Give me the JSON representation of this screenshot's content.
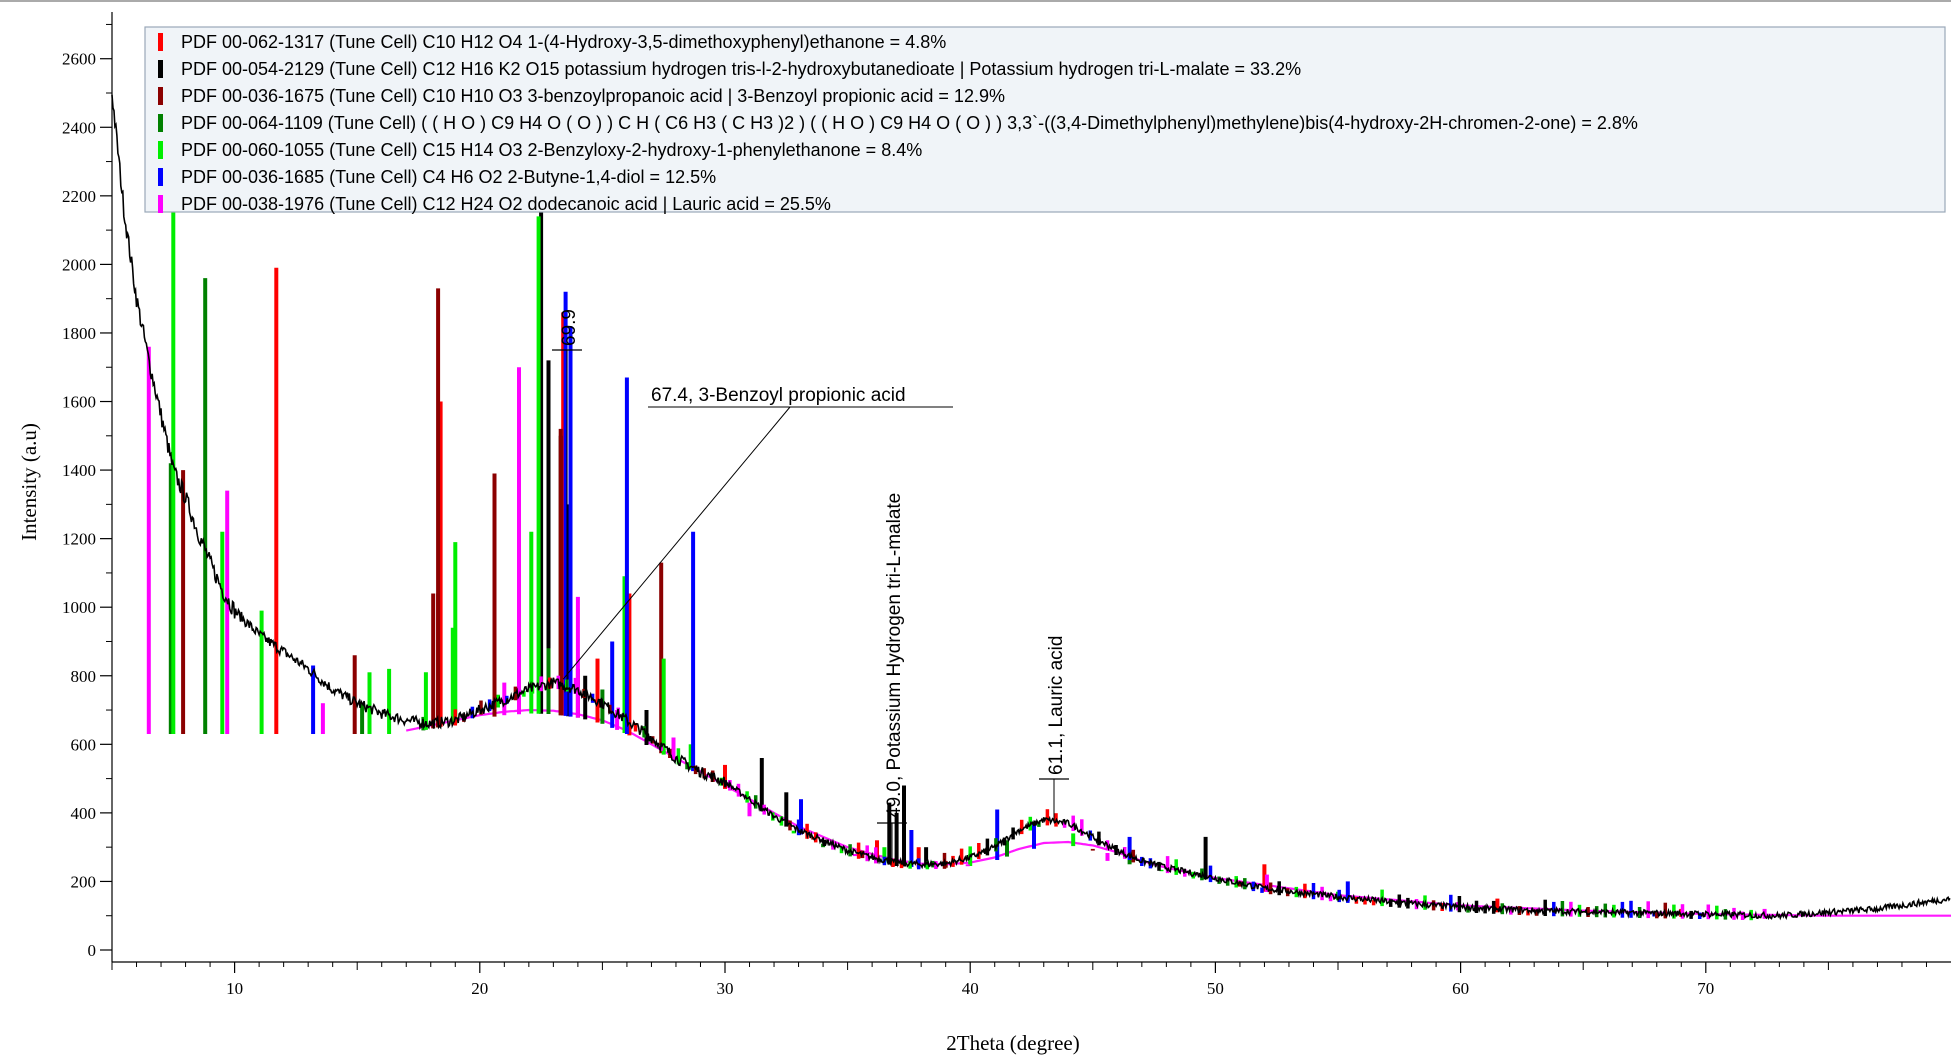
{
  "chart_data": {
    "type": "line",
    "xlabel": "2Theta (degree)",
    "ylabel": "Intensity (a.u)",
    "xlim": [
      5,
      80
    ],
    "ylim": [
      -40,
      2700
    ],
    "xticks": [
      10,
      20,
      30,
      40,
      50,
      60,
      70
    ],
    "yticks": [
      0,
      200,
      400,
      600,
      800,
      1000,
      1200,
      1400,
      1600,
      1800,
      2000,
      2200,
      2400,
      2600
    ],
    "grid": false,
    "legend_placement": "top",
    "legend": [
      {
        "color": "#ff0000",
        "text": "PDF 00-062-1317 (Tune Cell) C10 H12 O4 1-(4-Hydroxy-3,5-dimethoxyphenyl)ethanone = 4.8%"
      },
      {
        "color": "#000000",
        "text": "PDF 00-054-2129 (Tune Cell) C12 H16 K2 O15 potassium hydrogen tris-l-2-hydroxybutanedioate | Potassium hydrogen tri-L-malate = 33.2%"
      },
      {
        "color": "#8b0000",
        "text": "PDF 00-036-1675 (Tune Cell) C10 H10 O3 3-benzoylpropanoic acid | 3-Benzoyl propionic acid = 12.9%"
      },
      {
        "color": "#008000",
        "text": "PDF 00-064-1109 (Tune Cell) ( ( H O ) C9 H4 O ( O ) ) C H ( C6 H3 ( C H3 )2 ) ( ( H O ) C9 H4 O ( O ) ) 3,3`-((3,4-Dimethylphenyl)methylene)bis(4-hydroxy-2H-chromen-2-one) = 2.8%"
      },
      {
        "color": "#00ee00",
        "text": "PDF 00-060-1055 (Tune Cell) C15 H14 O3 2-Benzyloxy-2-hydroxy-1-phenylethanone = 8.4%"
      },
      {
        "color": "#0000ff",
        "text": "PDF 00-036-1685 (Tune Cell) C4 H6 O2 2-Butyne-1,4-diol = 12.5%"
      },
      {
        "color": "#ff00ff",
        "text": "PDF 00-038-1976 (Tune Cell) C12 H24 O2 dodecanoic acid | Lauric acid = 25.5%"
      }
    ],
    "annotations": [
      {
        "text": "67.4, 3-Benzoyl propionic acid",
        "x": 23.4,
        "y": 790,
        "orientation": "horizontal"
      },
      {
        "text": "69.9",
        "x": 23.5,
        "y": 1780,
        "orientation": "vertical"
      },
      {
        "text": "49.0, Potassium Hydrogen tri-L-malate",
        "x": 36.9,
        "y": 400,
        "orientation": "vertical"
      },
      {
        "text": "61.1, Lauric acid",
        "x": 43.3,
        "y": 530,
        "orientation": "vertical"
      }
    ],
    "observed_profile": {
      "name": "observed",
      "color": "#000000",
      "x": [
        5,
        5.5,
        6,
        6.5,
        7,
        7.5,
        8,
        8.5,
        9,
        9.5,
        10,
        11,
        12,
        13,
        14,
        15,
        16,
        17,
        18,
        19,
        20,
        21,
        22,
        23,
        24,
        25,
        26,
        27,
        28,
        29,
        30,
        31,
        32,
        33,
        34,
        35,
        36,
        37,
        38,
        39,
        40,
        41,
        42,
        43,
        44,
        45,
        46,
        47,
        48,
        50,
        52,
        55,
        58,
        60,
        63,
        66,
        70,
        73,
        75,
        77,
        80
      ],
      "y": [
        2500,
        2150,
        1900,
        1720,
        1560,
        1400,
        1320,
        1220,
        1130,
        1050,
        990,
        920,
        870,
        820,
        760,
        720,
        690,
        670,
        660,
        670,
        700,
        730,
        760,
        780,
        760,
        720,
        670,
        620,
        560,
        520,
        490,
        440,
        390,
        350,
        320,
        290,
        270,
        255,
        250,
        252,
        270,
        300,
        350,
        380,
        370,
        330,
        290,
        260,
        240,
        210,
        180,
        155,
        135,
        125,
        115,
        110,
        105,
        100,
        110,
        120,
        150
      ]
    },
    "fitted_background": {
      "name": "background",
      "x": [
        17,
        18,
        19,
        20,
        21,
        22,
        23,
        24,
        25,
        26,
        27,
        28,
        29,
        30,
        31,
        32,
        33,
        34,
        35,
        36,
        37,
        38,
        39,
        40,
        41,
        42,
        43,
        44,
        45,
        46,
        47,
        48,
        50,
        55,
        60,
        65,
        70,
        75,
        80
      ],
      "y": [
        640,
        655,
        670,
        685,
        695,
        700,
        698,
        688,
        670,
        640,
        600,
        560,
        520,
        480,
        440,
        400,
        360,
        330,
        300,
        280,
        262,
        252,
        250,
        255,
        270,
        295,
        312,
        315,
        305,
        285,
        260,
        240,
        210,
        160,
        130,
        115,
        105,
        100,
        100
      ]
    },
    "reference_lines": [
      {
        "phase": "PDF 00-062-1317",
        "color": "#ff0000",
        "positions": [
          11.7,
          18.3,
          18.4,
          23.4,
          24.8,
          26.1,
          30.0,
          36.2,
          37.9,
          52.0,
          61.5,
          69.0
        ],
        "intensities": [
          1990,
          1040,
          1600,
          1860,
          850,
          1040,
          540,
          320,
          300,
          250,
          150,
          120
        ]
      },
      {
        "phase": "PDF 00-054-2129",
        "color": "#000000",
        "positions": [
          22.5,
          22.8,
          23.3,
          23.6,
          24.3,
          26.8,
          31.5,
          32.5,
          36.7,
          37.0,
          37.3,
          38.2,
          49.6
        ],
        "intensities": [
          2200,
          1720,
          1500,
          1300,
          800,
          700,
          560,
          460,
          430,
          400,
          480,
          300,
          330
        ]
      },
      {
        "phase": "PDF 00-036-1675",
        "color": "#8b0000",
        "positions": [
          7.9,
          14.9,
          18.1,
          18.3,
          20.6,
          23.3,
          24.0,
          27.4,
          29.5,
          33.6,
          35.6,
          39.0,
          45.0,
          51.0
        ],
        "intensities": [
          1400,
          860,
          1040,
          1930,
          1390,
          1520,
          820,
          1130,
          510,
          330,
          290,
          260,
          290,
          200
        ]
      },
      {
        "phase": "PDF 00-064-1109",
        "color": "#008000",
        "positions": [
          7.4,
          8.8,
          15.2,
          17.7,
          22.8,
          25.0,
          34.0,
          38.5,
          41.5,
          46.5
        ],
        "intensities": [
          1420,
          1960,
          720,
          680,
          880,
          760,
          300,
          260,
          320,
          250
        ]
      },
      {
        "phase": "PDF 00-060-1055",
        "color": "#00ee00",
        "positions": [
          7.5,
          9.5,
          11.1,
          15.5,
          16.3,
          17.8,
          18.9,
          19.0,
          22.1,
          22.4,
          25.9,
          27.5,
          28.6,
          32.8,
          36.5,
          40.0,
          44.2,
          47.8,
          55.0
        ],
        "intensities": [
          2190,
          1220,
          990,
          810,
          820,
          810,
          940,
          1190,
          1220,
          2140,
          1090,
          850,
          600,
          340,
          300,
          280,
          340,
          230,
          170
        ]
      },
      {
        "phase": "PDF 00-036-1685",
        "color": "#0000ff",
        "positions": [
          13.2,
          23.5,
          23.7,
          25.4,
          26.0,
          28.7,
          33.1,
          37.6,
          41.1,
          42.6,
          46.5,
          55.4,
          67.9
        ],
        "intensities": [
          830,
          1920,
          1820,
          900,
          1670,
          1220,
          440,
          350,
          410,
          370,
          330,
          200,
          110
        ]
      },
      {
        "phase": "PDF 00-038-1976",
        "color": "#ff00ff",
        "positions": [
          6.5,
          9.7,
          13.6,
          21.0,
          21.6,
          24.0,
          25.6,
          27.9,
          31.0,
          35.3,
          39.9,
          45.6,
          52.1,
          59.9,
          72.4
        ],
        "intensities": [
          1760,
          1340,
          720,
          780,
          1700,
          1030,
          700,
          620,
          390,
          280,
          250,
          260,
          220,
          140,
          120
        ]
      }
    ]
  }
}
